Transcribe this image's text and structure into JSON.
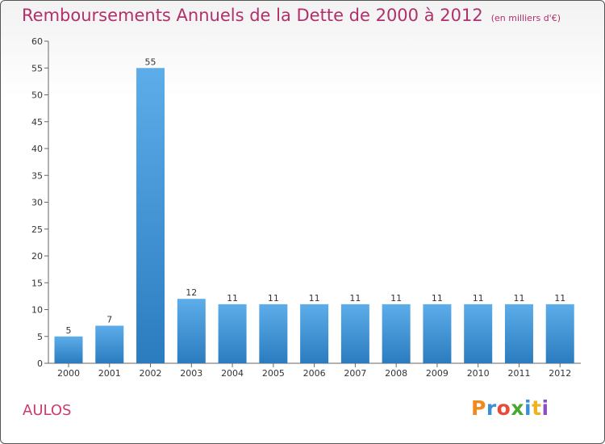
{
  "title": "Remboursements Annuels de la Dette de 2000 à 2012",
  "unit": "(en milliers d'€)",
  "place": "AULOS",
  "logo": {
    "letters": [
      "P",
      "r",
      "o",
      "x",
      "i",
      "t",
      "i"
    ],
    "colors": [
      "#f08a1e",
      "#3a8fd6",
      "#e94a3a",
      "#49a832",
      "#3a8fd6",
      "#f0b21e",
      "#8a4fc0"
    ]
  },
  "chart_data": {
    "type": "bar",
    "categories": [
      "2000",
      "2001",
      "2002",
      "2003",
      "2004",
      "2005",
      "2006",
      "2007",
      "2008",
      "2009",
      "2010",
      "2011",
      "2012"
    ],
    "values": [
      5,
      7,
      55,
      12,
      11,
      11,
      11,
      11,
      11,
      11,
      11,
      11,
      11
    ],
    "title": "Remboursements Annuels de la Dette de 2000 à 2012",
    "ylim": [
      0,
      60
    ],
    "yticks": [
      0,
      5,
      10,
      15,
      20,
      25,
      30,
      35,
      40,
      45,
      50,
      55,
      60
    ],
    "grid": false,
    "bar_color_top": "#5dadea",
    "bar_color_bottom": "#2b7cbf"
  }
}
